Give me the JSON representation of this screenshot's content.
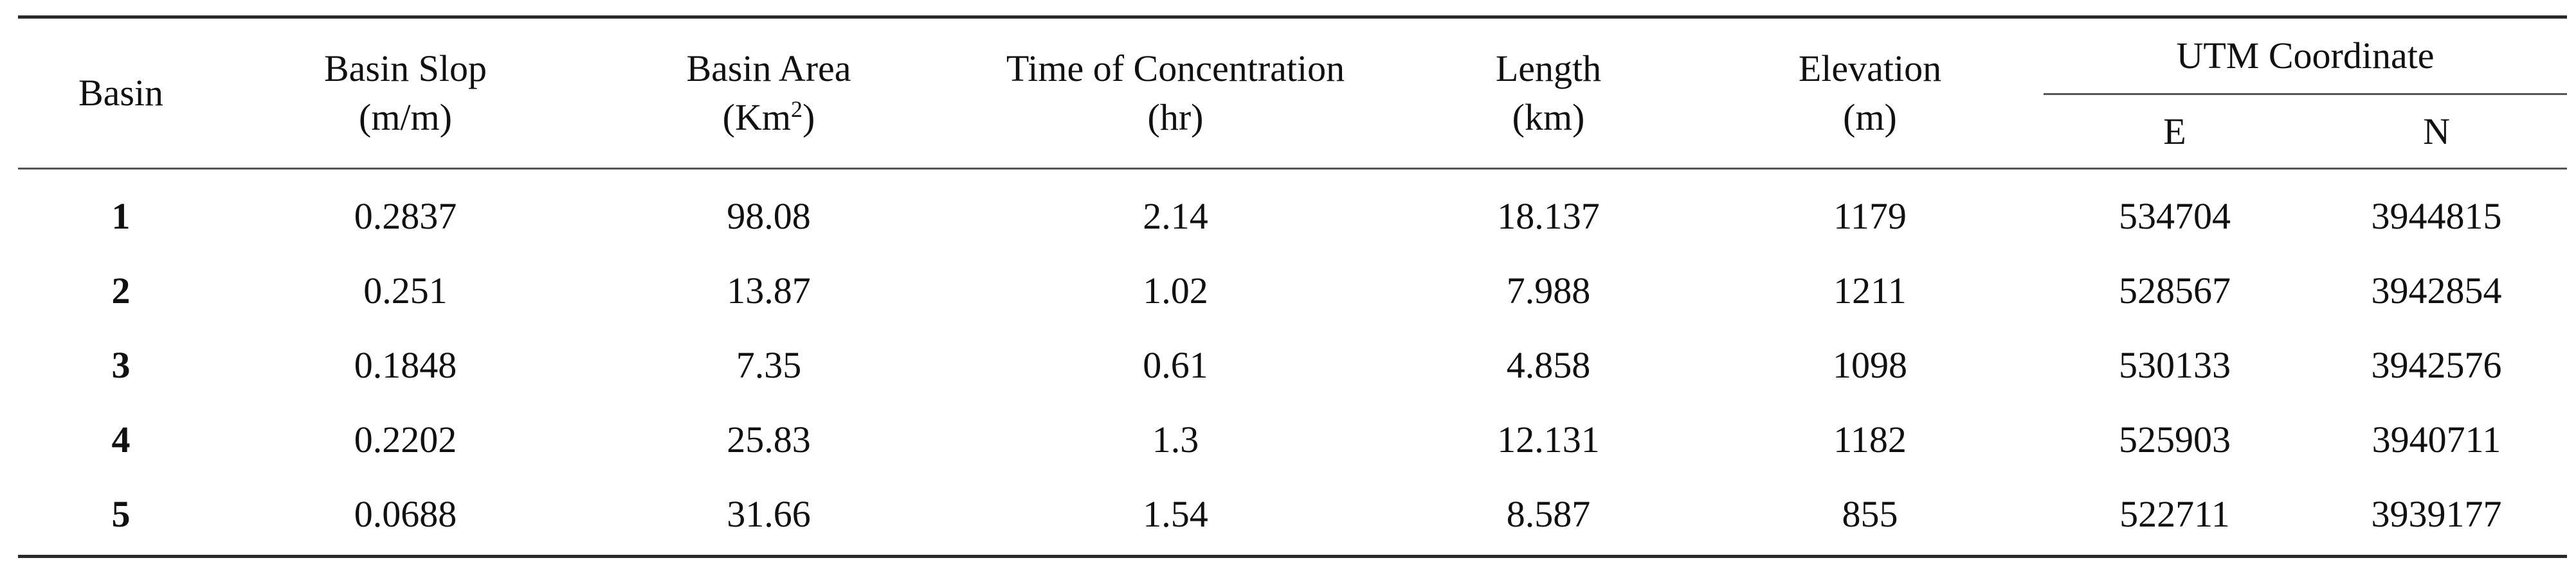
{
  "table": {
    "headers": {
      "basin": "Basin",
      "slope": {
        "line1": "Basin Slop",
        "line2": "(m/m)"
      },
      "area": {
        "line1": "Basin Area",
        "line2_prefix": "(Km",
        "line2_sup": "2",
        "line2_suffix": ")"
      },
      "toc": {
        "line1": "Time of Concentration",
        "line2": "(hr)"
      },
      "length": {
        "line1": "Length",
        "line2": "(km)"
      },
      "elevation": {
        "line1": "Elevation",
        "line2": "(m)"
      },
      "utm": {
        "group": "UTM Coordinate",
        "e": "E",
        "n": "N"
      }
    },
    "rows": [
      {
        "basin": "1",
        "slope": "0.2837",
        "area": "98.08",
        "toc": "2.14",
        "length": "18.137",
        "elevation": "1179",
        "e": "534704",
        "n": "3944815"
      },
      {
        "basin": "2",
        "slope": "0.251",
        "area": "13.87",
        "toc": "1.02",
        "length": "7.988",
        "elevation": "1211",
        "e": "528567",
        "n": "3942854"
      },
      {
        "basin": "3",
        "slope": "0.1848",
        "area": "7.35",
        "toc": "0.61",
        "length": "4.858",
        "elevation": "1098",
        "e": "530133",
        "n": "3942576"
      },
      {
        "basin": "4",
        "slope": "0.2202",
        "area": "25.83",
        "toc": "1.3",
        "length": "12.131",
        "elevation": "1182",
        "e": "525903",
        "n": "3940711"
      },
      {
        "basin": "5",
        "slope": "0.0688",
        "area": "31.66",
        "toc": "1.54",
        "length": "8.587",
        "elevation": "855",
        "e": "522711",
        "n": "3939177"
      }
    ]
  }
}
